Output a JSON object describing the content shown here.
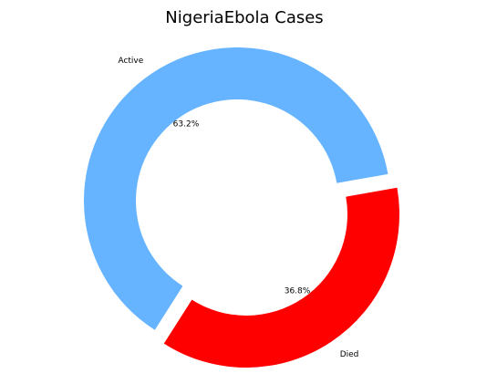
{
  "chart_data": {
    "type": "pie",
    "title": "NigeriaEbola  Cases",
    "categories": [
      "Active",
      "Died"
    ],
    "values": [
      63.2,
      36.8
    ],
    "percent_labels": [
      "63.2%",
      "36.8%"
    ],
    "colors": [
      "#66b3ff",
      "#ff0000"
    ],
    "donut": true,
    "exploded": [
      "Died"
    ],
    "legend": "none"
  }
}
